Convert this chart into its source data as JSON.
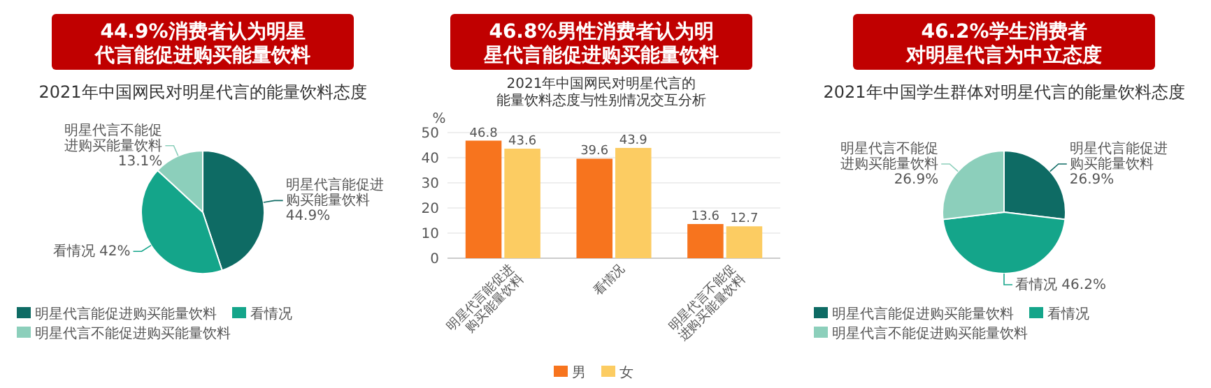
{
  "chart_data": [
    {
      "type": "pie",
      "title": "44.9%消费者认为明星代言能促进购买能量饮料",
      "subtitle": "2021年中国网民对明星代言的能量饮料态度",
      "categories": [
        "明星代言能促进购买能量饮料",
        "看情况",
        "明星代言不能促进购买能量饮料"
      ],
      "values": [
        44.9,
        42,
        13.1
      ],
      "value_labels": [
        "明星代言能促进购买能量饮料 44.9%",
        "看情况 42%",
        "明星代言不能促进购买能量饮料 13.1%"
      ],
      "colors": [
        "#0e6b64",
        "#14a58a",
        "#8ccfbb"
      ],
      "legend": "bottom"
    },
    {
      "type": "bar",
      "title": "46.8%男性消费者认为明星代言能促进购买能量饮料",
      "subtitle": "2021年中国网民对明星代言的能量饮料态度与性别情况交互分析",
      "ylabel": "%",
      "categories": [
        "明星代言能促进购买能量饮料",
        "看情况",
        "明星代言不能促进购买能量饮料"
      ],
      "series": [
        {
          "name": "男",
          "color": "#f7741e",
          "values": [
            46.8,
            39.6,
            13.6
          ]
        },
        {
          "name": "女",
          "color": "#fccc62",
          "values": [
            43.6,
            43.9,
            12.7
          ]
        }
      ],
      "ylim": [
        0,
        50
      ],
      "yticks": [
        0,
        10,
        20,
        30,
        40,
        50
      ],
      "grid": "y",
      "data_labels": true,
      "legend": "bottom"
    },
    {
      "type": "pie",
      "title": "46.2%学生消费者对明星代言为中立态度",
      "subtitle": "2021年中国学生群体对明星代言的能量饮料态度",
      "categories": [
        "明星代言能促进购买能量饮料",
        "看情况",
        "明星代言不能促进购买能量饮料"
      ],
      "values": [
        26.9,
        46.2,
        26.9
      ],
      "value_labels": [
        "明星代言能促进购买能量饮料 26.9%",
        "看情况 46.2%",
        "明星代言不能促进购买能量饮料 26.9%"
      ],
      "colors": [
        "#0e6b64",
        "#14a58a",
        "#8ccfbb"
      ],
      "legend": "bottom"
    }
  ]
}
